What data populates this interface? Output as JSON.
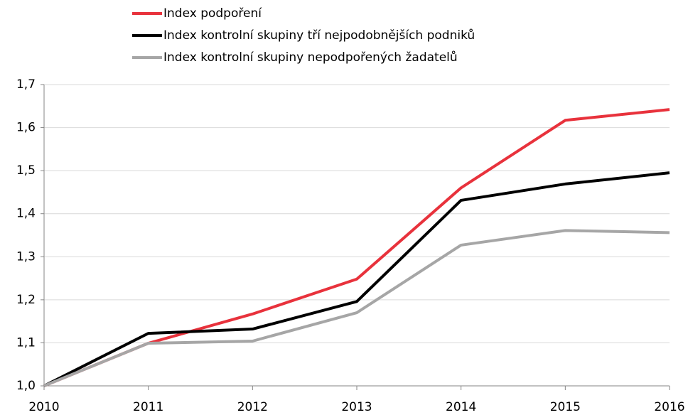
{
  "chart_data": {
    "type": "line",
    "x": [
      2010,
      2011,
      2012,
      2013,
      2014,
      2015,
      2016
    ],
    "xlim": [
      2010,
      2016
    ],
    "xticks": [
      2010,
      2011,
      2012,
      2013,
      2014,
      2015,
      2016
    ],
    "ylim": [
      1.0,
      1.7
    ],
    "yticks": [
      {
        "value": 1.0,
        "label": "1,0"
      },
      {
        "value": 1.1,
        "label": "1,1"
      },
      {
        "value": 1.2,
        "label": "1,2"
      },
      {
        "value": 1.3,
        "label": "1,3"
      },
      {
        "value": 1.4,
        "label": "1,4"
      },
      {
        "value": 1.5,
        "label": "1,5"
      },
      {
        "value": 1.6,
        "label": "1,6"
      },
      {
        "value": 1.7,
        "label": "1,7"
      }
    ],
    "grid": true,
    "legend": "top",
    "series": [
      {
        "name": "Index podpoření",
        "color": "#e8323c",
        "values": [
          1.0,
          1.099,
          1.167,
          1.248,
          1.46,
          1.617,
          1.642
        ]
      },
      {
        "name": "Index kontrolní skupiny tří nejpodobnějších podniků",
        "color": "#000000",
        "values": [
          1.0,
          1.122,
          1.132,
          1.196,
          1.431,
          1.469,
          1.495
        ]
      },
      {
        "name": "Index kontrolní skupiny nepodpořených žadatelů",
        "color": "#a6a6a6",
        "values": [
          1.0,
          1.099,
          1.104,
          1.17,
          1.327,
          1.361,
          1.356
        ]
      }
    ]
  }
}
